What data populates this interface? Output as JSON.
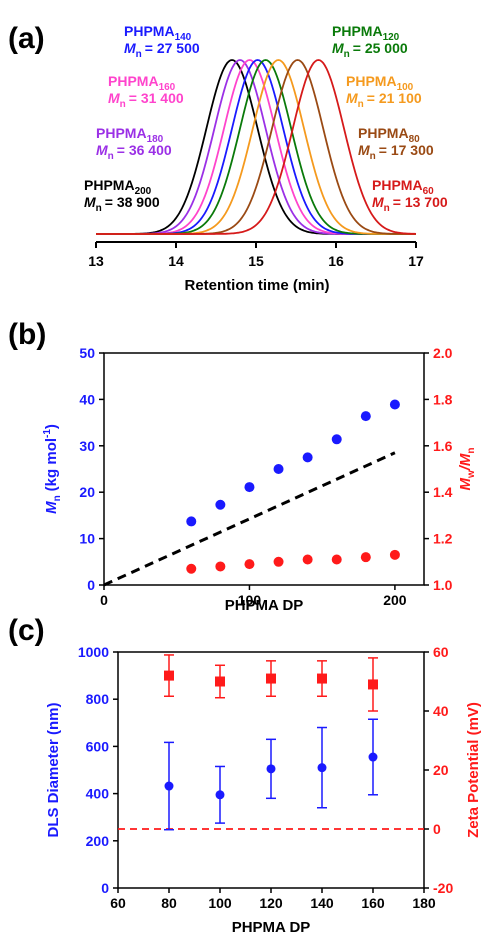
{
  "panels": [
    "(a)",
    "(b)",
    "(c)"
  ],
  "chart_data": [
    {
      "type": "line",
      "xlabel": "Retention time (min)",
      "xlim": [
        13,
        17
      ],
      "xticks": [
        "13",
        "14",
        "15",
        "16",
        "17"
      ],
      "series": [
        {
          "name": "PHPMA",
          "sub": "200",
          "mn_prefix": "M",
          "mn_sub": "n",
          "mn_value": "= 38 900",
          "peak": 14.7,
          "color": "#000000"
        },
        {
          "name": "PHPMA",
          "sub": "180",
          "mn_prefix": "M",
          "mn_sub": "n",
          "mn_value": "= 36 400",
          "peak": 14.8,
          "color": "#9b30e6"
        },
        {
          "name": "PHPMA",
          "sub": "160",
          "mn_prefix": "M",
          "mn_sub": "n",
          "mn_value": "= 31 400",
          "peak": 14.92,
          "color": "#ff44cc"
        },
        {
          "name": "PHPMA",
          "sub": "140",
          "mn_prefix": "M",
          "mn_sub": "n",
          "mn_value": "= 27 500",
          "peak": 15.02,
          "color": "#1a1aff"
        },
        {
          "name": "PHPMA",
          "sub": "120",
          "mn_prefix": "M",
          "mn_sub": "n",
          "mn_value": "= 25 000",
          "peak": 15.12,
          "color": "#0a7a0a"
        },
        {
          "name": "PHPMA",
          "sub": "100",
          "mn_prefix": "M",
          "mn_sub": "n",
          "mn_value": "= 21 100",
          "peak": 15.28,
          "color": "#f59a1e"
        },
        {
          "name": "PHPMA",
          "sub": "80",
          "mn_prefix": "M",
          "mn_sub": "n",
          "mn_value": "= 17 300",
          "peak": 15.52,
          "color": "#9a4a14"
        },
        {
          "name": "PHPMA",
          "sub": "60",
          "mn_prefix": "M",
          "mn_sub": "n",
          "mn_value": "= 13 700",
          "peak": 15.78,
          "color": "#d61a1a"
        }
      ]
    },
    {
      "type": "scatter",
      "xlabel": "PHPMA DP",
      "ylabel_left": "M",
      "ylabel_left_sub": "n",
      "ylabel_left_unit": "(kg mol",
      "ylabel_left_sup": "-1",
      "ylabel_right_a": "M",
      "ylabel_right_a_sub": "w",
      "ylabel_right_b": "/M",
      "ylabel_right_b_sub": "n",
      "xlim": [
        0,
        220
      ],
      "ylim_left": [
        0,
        50
      ],
      "ylim_right": [
        1.0,
        2.0
      ],
      "xticks": [
        "0",
        "100",
        "200"
      ],
      "yticks_left": [
        "0",
        "10",
        "20",
        "30",
        "40",
        "50"
      ],
      "yticks_right": [
        "1.0",
        "1.2",
        "1.4",
        "1.6",
        "1.8",
        "2.0"
      ],
      "theory_line": {
        "x": [
          0,
          200
        ],
        "y": [
          0,
          28.5
        ]
      },
      "x": [
        60,
        80,
        100,
        120,
        140,
        160,
        180,
        200
      ],
      "mn": [
        13.7,
        17.3,
        21.1,
        25.0,
        27.5,
        31.4,
        36.4,
        38.9
      ],
      "dispersity": [
        1.07,
        1.08,
        1.09,
        1.1,
        1.11,
        1.11,
        1.12,
        1.13
      ],
      "mn_color": "#1a1aff",
      "disp_color": "#ff1a1a"
    },
    {
      "type": "scatter",
      "xlabel": "PHPMA DP",
      "ylabel_left": "DLS Diameter (nm)",
      "ylabel_right": "Zeta Potential (mV)",
      "xlim": [
        60,
        180
      ],
      "ylim_left": [
        0,
        1000
      ],
      "ylim_right": [
        -20,
        60
      ],
      "xticks": [
        "60",
        "80",
        "100",
        "120",
        "140",
        "160",
        "180"
      ],
      "yticks_left": [
        "0",
        "200",
        "400",
        "600",
        "800",
        "1000"
      ],
      "yticks_right": [
        "-20",
        "0",
        "20",
        "40",
        "60"
      ],
      "x": [
        80,
        100,
        120,
        140,
        160
      ],
      "diameter": [
        432,
        395,
        505,
        510,
        555
      ],
      "diameter_err": [
        185,
        120,
        125,
        170,
        160
      ],
      "zeta": [
        52,
        50,
        51,
        51,
        49
      ],
      "zeta_err": [
        7,
        5.5,
        6,
        6,
        9
      ],
      "zero_line": 0,
      "diameter_color": "#1a1aff",
      "zeta_color": "#ff1a1a"
    }
  ]
}
